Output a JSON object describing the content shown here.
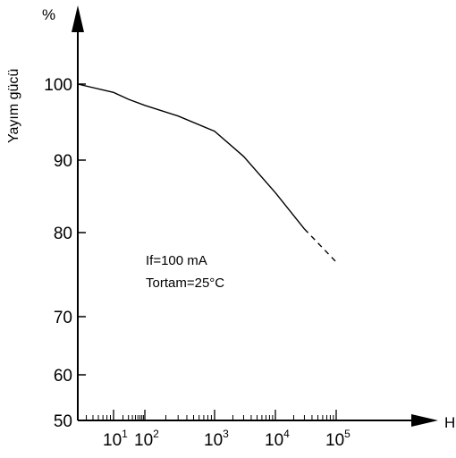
{
  "chart_data": {
    "type": "line",
    "title": "",
    "ylabel": "Yayım gücü",
    "y_unit": "%",
    "x_unit": "H",
    "xscale": "log",
    "xlim": [
      3,
      130000
    ],
    "ylim": [
      50,
      105
    ],
    "y_ticks": [
      {
        "value": 50,
        "label": "50"
      },
      {
        "value": 60,
        "label": "60"
      },
      {
        "value": 70,
        "label": "70"
      },
      {
        "value": 80,
        "label": "80"
      },
      {
        "value": 90,
        "label": "90"
      },
      {
        "value": 100,
        "label": "100"
      }
    ],
    "x_ticks": [
      {
        "value": 10,
        "base": "10",
        "exp": "1"
      },
      {
        "value": 100,
        "base": "10",
        "exp": "2"
      },
      {
        "value": 1000,
        "base": "10",
        "exp": "3"
      },
      {
        "value": 10000,
        "base": "10",
        "exp": "4"
      },
      {
        "value": 100000,
        "base": "10",
        "exp": "5"
      }
    ],
    "series": [
      {
        "solid": {
          "x": [
            3,
            10,
            30,
            100,
            300,
            1000,
            3000,
            10000,
            30000
          ],
          "y": [
            100,
            98.9,
            98,
            97.2,
            95.8,
            93.8,
            90.5,
            85.5,
            80.5
          ]
        },
        "dashed": {
          "x": [
            30000,
            100000
          ],
          "y": [
            80.5,
            76.5
          ]
        }
      }
    ],
    "annotations": [
      "If=100 mA",
      "Tortam=25°C"
    ],
    "grid": false
  },
  "colors": {
    "background": "#ffffff",
    "ink": "#000000"
  }
}
